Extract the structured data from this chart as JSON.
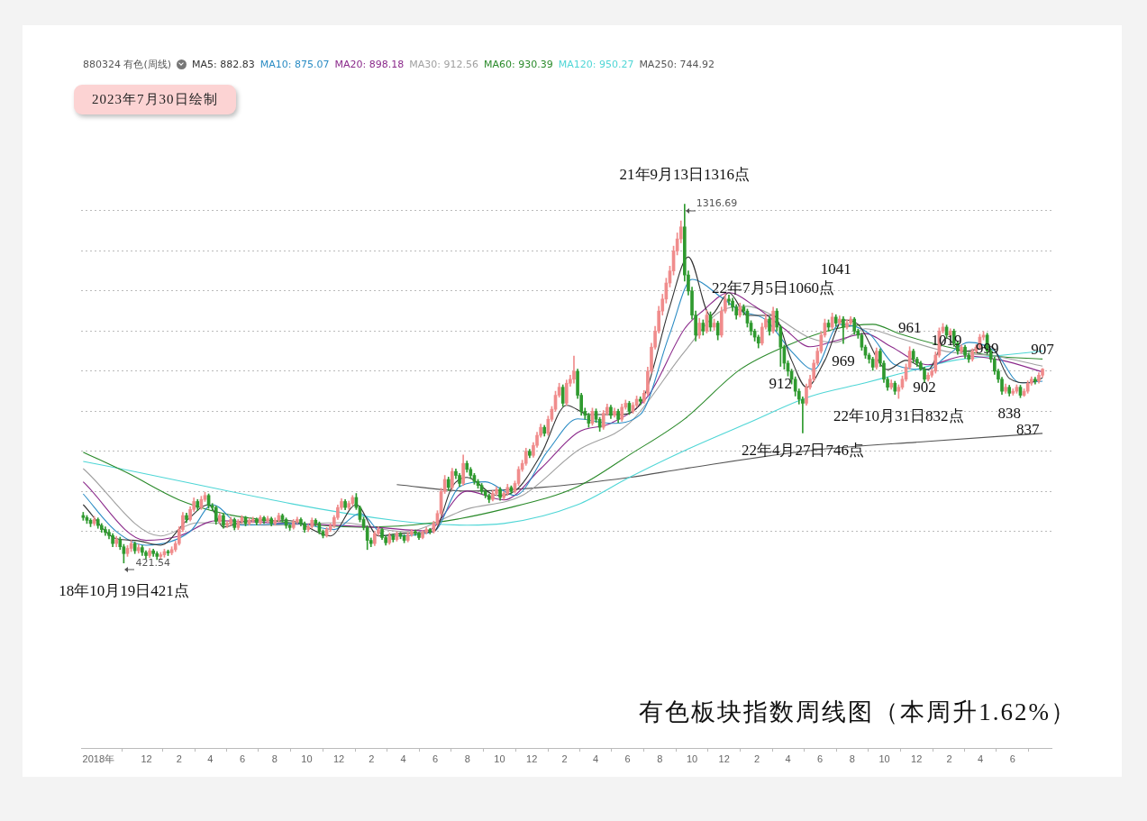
{
  "chart_data": {
    "type": "candlestick",
    "title": "有色板块指数周线图（本周升1.62%）",
    "legend_title": "880324 有色(周线)",
    "legend": "top left",
    "grid": "y",
    "tick_labels": "x",
    "marker": "none",
    "line_style": "solid",
    "xlim": [
      "2018-07-30",
      "2023-08-14"
    ],
    "yticks": [
      {
        "value": 500,
        "label": null
      },
      {
        "value": 600,
        "label": null
      },
      {
        "value": 700,
        "label": null
      },
      {
        "value": 800,
        "label": null
      },
      {
        "value": 900,
        "label": null
      },
      {
        "value": 1000,
        "label": null
      },
      {
        "value": 1100,
        "label": null
      },
      {
        "value": 1200,
        "label": null
      },
      {
        "value": 1300,
        "label": null
      }
    ],
    "xticks": [
      {
        "value": "2018-09-01",
        "label": "2018年"
      },
      {
        "value": "2018-12-01",
        "label": "12"
      },
      {
        "value": "2019-02-01",
        "label": "2"
      },
      {
        "value": "2019-04-01",
        "label": "4"
      },
      {
        "value": "2019-06-01",
        "label": "6"
      },
      {
        "value": "2019-08-01",
        "label": "8"
      },
      {
        "value": "2019-10-01",
        "label": "10"
      },
      {
        "value": "2019-12-01",
        "label": "12"
      },
      {
        "value": "2020-02-01",
        "label": "2"
      },
      {
        "value": "2020-04-01",
        "label": "4"
      },
      {
        "value": "2020-06-01",
        "label": "6"
      },
      {
        "value": "2020-08-01",
        "label": "8"
      },
      {
        "value": "2020-10-01",
        "label": "10"
      },
      {
        "value": "2020-12-01",
        "label": "12"
      },
      {
        "value": "2021-02-01",
        "label": "2"
      },
      {
        "value": "2021-04-01",
        "label": "4"
      },
      {
        "value": "2021-06-01",
        "label": "6"
      },
      {
        "value": "2021-08-01",
        "label": "8"
      },
      {
        "value": "2021-10-01",
        "label": "10"
      },
      {
        "value": "2021-12-01",
        "label": "12"
      },
      {
        "value": "2022-02-01",
        "label": "2"
      },
      {
        "value": "2022-04-01",
        "label": "4"
      },
      {
        "value": "2022-06-01",
        "label": "6"
      },
      {
        "value": "2022-08-01",
        "label": "8"
      },
      {
        "value": "2022-10-01",
        "label": "10"
      },
      {
        "value": "2022-12-01",
        "label": "12"
      },
      {
        "value": "2023-02-01",
        "label": "2"
      },
      {
        "value": "2023-04-01",
        "label": "4"
      },
      {
        "value": "2023-06-01",
        "label": "6"
      }
    ],
    "x": [
      "2018-08-03",
      "2018-08-10",
      "2018-08-17",
      "2018-08-24",
      "2018-08-31",
      "2018-09-07",
      "2018-09-14",
      "2018-09-21",
      "2018-09-28",
      "2018-10-05",
      "2018-10-12",
      "2018-10-19",
      "2018-10-26",
      "2018-11-02",
      "2018-11-09",
      "2018-11-16",
      "2018-11-23",
      "2018-11-30",
      "2018-12-07",
      "2018-12-14",
      "2018-12-21",
      "2018-12-28",
      "2019-01-04",
      "2019-01-11",
      "2019-01-18",
      "2019-01-25",
      "2019-02-01",
      "2019-02-08",
      "2019-02-15",
      "2019-02-22",
      "2019-03-01",
      "2019-03-08",
      "2019-03-15",
      "2019-03-22",
      "2019-03-29",
      "2019-04-05",
      "2019-04-12",
      "2019-04-19",
      "2019-04-26",
      "2019-05-03",
      "2019-05-10",
      "2019-05-17",
      "2019-05-24",
      "2019-05-31",
      "2019-06-07",
      "2019-06-14",
      "2019-06-21",
      "2019-06-28",
      "2019-07-05",
      "2019-07-12",
      "2019-07-19",
      "2019-07-26",
      "2019-08-02",
      "2019-08-09",
      "2019-08-16",
      "2019-08-23",
      "2019-08-30",
      "2019-09-06",
      "2019-09-13",
      "2019-09-20",
      "2019-09-27",
      "2019-10-04",
      "2019-10-11",
      "2019-10-18",
      "2019-10-25",
      "2019-11-01",
      "2019-11-08",
      "2019-11-15",
      "2019-11-22",
      "2019-11-29",
      "2019-12-06",
      "2019-12-13",
      "2019-12-20",
      "2019-12-27",
      "2020-01-03",
      "2020-01-10",
      "2020-01-17",
      "2020-01-24",
      "2020-01-31",
      "2020-02-07",
      "2020-02-14",
      "2020-02-21",
      "2020-02-28",
      "2020-03-06",
      "2020-03-13",
      "2020-03-20",
      "2020-03-27",
      "2020-04-03",
      "2020-04-10",
      "2020-04-17",
      "2020-04-24",
      "2020-05-01",
      "2020-05-08",
      "2020-05-15",
      "2020-05-22",
      "2020-05-29",
      "2020-06-05",
      "2020-06-12",
      "2020-06-19",
      "2020-06-26",
      "2020-07-03",
      "2020-07-10",
      "2020-07-17",
      "2020-07-24",
      "2020-07-31",
      "2020-08-07",
      "2020-08-14",
      "2020-08-21",
      "2020-08-28",
      "2020-09-04",
      "2020-09-11",
      "2020-09-18",
      "2020-09-25",
      "2020-10-02",
      "2020-10-09",
      "2020-10-16",
      "2020-10-23",
      "2020-10-30",
      "2020-11-06",
      "2020-11-13",
      "2020-11-20",
      "2020-11-27",
      "2020-12-04",
      "2020-12-11",
      "2020-12-18",
      "2020-12-25",
      "2021-01-01",
      "2021-01-08",
      "2021-01-15",
      "2021-01-22",
      "2021-01-29",
      "2021-02-05",
      "2021-02-12",
      "2021-02-19",
      "2021-02-26",
      "2021-03-05",
      "2021-03-12",
      "2021-03-19",
      "2021-03-26",
      "2021-04-02",
      "2021-04-09",
      "2021-04-16",
      "2021-04-23",
      "2021-04-30",
      "2021-05-07",
      "2021-05-14",
      "2021-05-21",
      "2021-05-28",
      "2021-06-04",
      "2021-06-11",
      "2021-06-18",
      "2021-06-25",
      "2021-07-02",
      "2021-07-09",
      "2021-07-16",
      "2021-07-23",
      "2021-07-30",
      "2021-08-06",
      "2021-08-13",
      "2021-08-20",
      "2021-08-27",
      "2021-09-03",
      "2021-09-10",
      "2021-09-17",
      "2021-09-24",
      "2021-10-01",
      "2021-10-08",
      "2021-10-15",
      "2021-10-22",
      "2021-10-29",
      "2021-11-05",
      "2021-11-12",
      "2021-11-19",
      "2021-11-26",
      "2021-12-03",
      "2021-12-10",
      "2021-12-17",
      "2021-12-24",
      "2021-12-31",
      "2022-01-07",
      "2022-01-14",
      "2022-01-21",
      "2022-01-28",
      "2022-02-04",
      "2022-02-11",
      "2022-02-18",
      "2022-02-25",
      "2022-03-04",
      "2022-03-11",
      "2022-03-18",
      "2022-03-25",
      "2022-04-01",
      "2022-04-08",
      "2022-04-15",
      "2022-04-22",
      "2022-04-29",
      "2022-05-06",
      "2022-05-13",
      "2022-05-20",
      "2022-05-27",
      "2022-06-03",
      "2022-06-10",
      "2022-06-17",
      "2022-06-24",
      "2022-07-01",
      "2022-07-08",
      "2022-07-15",
      "2022-07-22",
      "2022-07-29",
      "2022-08-05",
      "2022-08-12",
      "2022-08-19",
      "2022-08-26",
      "2022-09-02",
      "2022-09-09",
      "2022-09-16",
      "2022-09-23",
      "2022-09-30",
      "2022-10-07",
      "2022-10-14",
      "2022-10-21",
      "2022-10-28",
      "2022-11-04",
      "2022-11-11",
      "2022-11-18",
      "2022-11-25",
      "2022-12-02",
      "2022-12-09",
      "2022-12-16",
      "2022-12-23",
      "2022-12-30",
      "2023-01-06",
      "2023-01-13",
      "2023-01-20",
      "2023-01-27",
      "2023-02-03",
      "2023-02-10",
      "2023-02-17",
      "2023-02-24",
      "2023-03-03",
      "2023-03-10",
      "2023-03-17",
      "2023-03-24",
      "2023-03-31",
      "2023-04-07",
      "2023-04-14",
      "2023-04-21",
      "2023-04-28",
      "2023-05-05",
      "2023-05-12",
      "2023-05-19",
      "2023-05-26",
      "2023-06-02",
      "2023-06-09",
      "2023-06-16",
      "2023-06-23",
      "2023-06-30",
      "2023-07-07",
      "2023-07-14",
      "2023-07-21",
      "2023-07-28"
    ],
    "ohlc": [
      [
        540,
        548,
        528,
        535
      ],
      [
        535,
        540,
        520,
        528
      ],
      [
        528,
        532,
        512,
        520
      ],
      [
        520,
        538,
        515,
        530
      ],
      [
        530,
        534,
        508,
        515
      ],
      [
        515,
        520,
        498,
        505
      ],
      [
        505,
        512,
        490,
        498
      ],
      [
        498,
        505,
        482,
        490
      ],
      [
        490,
        495,
        462,
        470
      ],
      [
        470,
        488,
        462,
        480
      ],
      [
        480,
        486,
        455,
        462
      ],
      [
        462,
        468,
        421.54,
        445
      ],
      [
        445,
        465,
        438,
        458
      ],
      [
        458,
        478,
        450,
        470
      ],
      [
        470,
        474,
        445,
        452
      ],
      [
        452,
        468,
        446,
        460
      ],
      [
        460,
        465,
        440,
        448
      ],
      [
        448,
        452,
        432,
        440
      ],
      [
        440,
        458,
        435,
        452
      ],
      [
        452,
        456,
        438,
        445
      ],
      [
        445,
        450,
        430,
        438
      ],
      [
        438,
        448,
        430,
        442
      ],
      [
        442,
        456,
        436,
        450
      ],
      [
        450,
        454,
        440,
        447
      ],
      [
        447,
        462,
        442,
        455
      ],
      [
        455,
        476,
        450,
        470
      ],
      [
        470,
        512,
        466,
        505
      ],
      [
        505,
        548,
        500,
        540
      ],
      [
        540,
        546,
        522,
        530
      ],
      [
        530,
        562,
        526,
        555
      ],
      [
        555,
        584,
        550,
        575
      ],
      [
        575,
        580,
        552,
        560
      ],
      [
        560,
        588,
        555,
        580
      ],
      [
        580,
        598,
        575,
        590
      ],
      [
        590,
        594,
        558,
        565
      ],
      [
        565,
        570,
        552,
        560
      ],
      [
        560,
        564,
        518,
        525
      ],
      [
        525,
        546,
        520,
        540
      ],
      [
        540,
        544,
        508,
        515
      ],
      [
        515,
        526,
        510,
        520
      ],
      [
        520,
        536,
        515,
        530
      ],
      [
        530,
        534,
        504,
        510
      ],
      [
        510,
        530,
        505,
        525
      ],
      [
        525,
        540,
        520,
        535
      ],
      [
        535,
        538,
        514,
        520
      ],
      [
        520,
        534,
        516,
        528
      ],
      [
        528,
        536,
        522,
        530
      ],
      [
        530,
        534,
        516,
        522
      ],
      [
        522,
        540,
        518,
        535
      ],
      [
        535,
        538,
        520,
        527
      ],
      [
        527,
        538,
        522,
        532
      ],
      [
        532,
        536,
        514,
        520
      ],
      [
        520,
        534,
        516,
        528
      ],
      [
        528,
        546,
        524,
        540
      ],
      [
        540,
        544,
        524,
        530
      ],
      [
        530,
        534,
        508,
        515
      ],
      [
        515,
        518,
        503,
        510
      ],
      [
        510,
        530,
        506,
        525
      ],
      [
        525,
        536,
        520,
        530
      ],
      [
        530,
        534,
        514,
        520
      ],
      [
        520,
        524,
        498,
        505
      ],
      [
        505,
        518,
        500,
        512
      ],
      [
        512,
        534,
        508,
        528
      ],
      [
        528,
        532,
        514,
        520
      ],
      [
        520,
        524,
        494,
        500
      ],
      [
        500,
        504,
        484,
        490
      ],
      [
        490,
        510,
        486,
        505
      ],
      [
        505,
        520,
        500,
        515
      ],
      [
        515,
        540,
        510,
        535
      ],
      [
        535,
        566,
        530,
        560
      ],
      [
        560,
        582,
        555,
        575
      ],
      [
        575,
        580,
        554,
        560
      ],
      [
        560,
        576,
        555,
        570
      ],
      [
        570,
        590,
        565,
        585
      ],
      [
        585,
        595,
        555,
        560
      ],
      [
        560,
        564,
        524,
        530
      ],
      [
        530,
        536,
        504,
        510
      ],
      [
        510,
        514,
        455,
        478
      ],
      [
        478,
        484,
        462,
        470
      ],
      [
        470,
        500,
        465,
        495
      ],
      [
        495,
        512,
        490,
        505
      ],
      [
        505,
        508,
        480,
        485
      ],
      [
        485,
        490,
        466,
        472
      ],
      [
        472,
        496,
        468,
        490
      ],
      [
        490,
        494,
        474,
        480
      ],
      [
        480,
        500,
        476,
        495
      ],
      [
        495,
        498,
        482,
        488
      ],
      [
        488,
        492,
        472,
        478
      ],
      [
        478,
        498,
        474,
        492
      ],
      [
        492,
        505,
        488,
        500
      ],
      [
        500,
        504,
        490,
        495
      ],
      [
        495,
        498,
        480,
        485
      ],
      [
        485,
        503,
        482,
        498
      ],
      [
        498,
        510,
        494,
        505
      ],
      [
        505,
        508,
        494,
        500
      ],
      [
        500,
        526,
        496,
        520
      ],
      [
        520,
        552,
        516,
        545
      ],
      [
        545,
        608,
        540,
        600
      ],
      [
        600,
        640,
        595,
        630
      ],
      [
        630,
        636,
        602,
        610
      ],
      [
        610,
        658,
        605,
        650
      ],
      [
        650,
        656,
        632,
        640
      ],
      [
        640,
        645,
        612,
        620
      ],
      [
        620,
        691,
        615,
        670
      ],
      [
        670,
        676,
        648,
        655
      ],
      [
        655,
        660,
        632,
        640
      ],
      [
        640,
        645,
        618,
        625
      ],
      [
        625,
        630,
        608,
        615
      ],
      [
        615,
        620,
        594,
        600
      ],
      [
        600,
        605,
        584,
        590
      ],
      [
        590,
        594,
        572,
        580
      ],
      [
        580,
        602,
        576,
        595
      ],
      [
        595,
        612,
        590,
        605
      ],
      [
        605,
        610,
        578,
        585
      ],
      [
        585,
        600,
        580,
        595
      ],
      [
        595,
        618,
        590,
        610
      ],
      [
        610,
        614,
        594,
        600
      ],
      [
        600,
        626,
        596,
        620
      ],
      [
        620,
        662,
        615,
        655
      ],
      [
        655,
        678,
        650,
        670
      ],
      [
        670,
        708,
        665,
        700
      ],
      [
        700,
        705,
        684,
        690
      ],
      [
        690,
        722,
        685,
        715
      ],
      [
        715,
        748,
        710,
        740
      ],
      [
        740,
        768,
        735,
        760
      ],
      [
        760,
        765,
        738,
        745
      ],
      [
        745,
        788,
        740,
        780
      ],
      [
        780,
        812,
        775,
        805
      ],
      [
        805,
        850,
        800,
        840
      ],
      [
        840,
        870,
        835,
        860
      ],
      [
        860,
        866,
        812,
        820
      ],
      [
        820,
        878,
        815,
        870
      ],
      [
        870,
        890,
        862,
        880
      ],
      [
        880,
        938,
        870,
        900
      ],
      [
        900,
        905,
        832,
        840
      ],
      [
        840,
        845,
        790,
        800
      ],
      [
        800,
        808,
        780,
        790
      ],
      [
        790,
        795,
        760,
        770
      ],
      [
        770,
        808,
        765,
        800
      ],
      [
        800,
        806,
        772,
        780
      ],
      [
        780,
        785,
        750,
        760
      ],
      [
        760,
        802,
        755,
        795
      ],
      [
        795,
        818,
        790,
        810
      ],
      [
        810,
        815,
        782,
        790
      ],
      [
        790,
        808,
        785,
        800
      ],
      [
        800,
        805,
        772,
        780
      ],
      [
        780,
        818,
        775,
        810
      ],
      [
        810,
        828,
        805,
        820
      ],
      [
        820,
        825,
        792,
        800
      ],
      [
        800,
        822,
        795,
        815
      ],
      [
        815,
        838,
        810,
        830
      ],
      [
        830,
        836,
        816,
        825
      ],
      [
        825,
        852,
        820,
        845
      ],
      [
        845,
        910,
        840,
        900
      ],
      [
        900,
        970,
        895,
        960
      ],
      [
        960,
        1012,
        955,
        1000
      ],
      [
        1000,
        1062,
        995,
        1050
      ],
      [
        1050,
        1092,
        1040,
        1080
      ],
      [
        1080,
        1132,
        1070,
        1120
      ],
      [
        1120,
        1162,
        1110,
        1150
      ],
      [
        1150,
        1212,
        1140,
        1200
      ],
      [
        1200,
        1245,
        1190,
        1230
      ],
      [
        1230,
        1275,
        1220,
        1260
      ],
      [
        1260,
        1316.69,
        1125,
        1140
      ],
      [
        1140,
        1150,
        1090,
        1100
      ],
      [
        1100,
        1110,
        1030,
        1040
      ],
      [
        1040,
        1050,
        975,
        990
      ],
      [
        990,
        1032,
        982,
        1020
      ],
      [
        1020,
        1028,
        990,
        1000
      ],
      [
        1000,
        1052,
        995,
        1040
      ],
      [
        1040,
        1048,
        1000,
        1010
      ],
      [
        1010,
        1030,
        1002,
        1020
      ],
      [
        1020,
        1025,
        978,
        990
      ],
      [
        990,
        1060,
        985,
        1050
      ],
      [
        1050,
        1092,
        1045,
        1080
      ],
      [
        1080,
        1090,
        1065,
        1075
      ],
      [
        1075,
        1082,
        1050,
        1060
      ],
      [
        1060,
        1066,
        1030,
        1040
      ],
      [
        1040,
        1070,
        1035,
        1060
      ],
      [
        1060,
        1066,
        1040,
        1050
      ],
      [
        1050,
        1055,
        1010,
        1020
      ],
      [
        1020,
        1026,
        990,
        1000
      ],
      [
        1000,
        1005,
        975,
        985
      ],
      [
        985,
        990,
        958,
        970
      ],
      [
        970,
        1020,
        965,
        1010
      ],
      [
        1010,
        1042,
        1005,
        1030
      ],
      [
        1030,
        1036,
        990,
        1000
      ],
      [
        1000,
        1060,
        995,
        1050
      ],
      [
        1050,
        1056,
        1000,
        1010
      ],
      [
        1010,
        1015,
        912,
        960
      ],
      [
        960,
        965,
        905,
        920
      ],
      [
        920,
        926,
        888,
        900
      ],
      [
        900,
        905,
        868,
        880
      ],
      [
        880,
        886,
        838,
        850
      ],
      [
        850,
        856,
        818,
        830
      ],
      [
        830,
        836,
        746,
        820
      ],
      [
        820,
        868,
        815,
        860
      ],
      [
        860,
        890,
        855,
        880
      ],
      [
        880,
        928,
        875,
        920
      ],
      [
        920,
        958,
        915,
        950
      ],
      [
        950,
        998,
        945,
        990
      ],
      [
        990,
        1030,
        985,
        1020
      ],
      [
        1020,
        1028,
        1000,
        1010
      ],
      [
        1010,
        1045,
        1005,
        1035
      ],
      [
        1035,
        1041,
        1012,
        1020
      ],
      [
        1020,
        1038,
        1015,
        1030
      ],
      [
        1030,
        1036,
        969,
        1010
      ],
      [
        1010,
        1028,
        1005,
        1020
      ],
      [
        1020,
        1036,
        1015,
        1030
      ],
      [
        1030,
        1034,
        992,
        1000
      ],
      [
        1000,
        1005,
        982,
        990
      ],
      [
        990,
        995,
        952,
        960
      ],
      [
        960,
        965,
        932,
        940
      ],
      [
        940,
        945,
        920,
        930
      ],
      [
        930,
        935,
        902,
        910
      ],
      [
        910,
        958,
        905,
        950
      ],
      [
        950,
        956,
        912,
        920
      ],
      [
        920,
        926,
        872,
        880
      ],
      [
        880,
        885,
        852,
        860
      ],
      [
        860,
        878,
        855,
        870
      ],
      [
        870,
        875,
        842,
        850
      ],
      [
        850,
        866,
        832,
        860
      ],
      [
        860,
        888,
        855,
        880
      ],
      [
        880,
        918,
        875,
        910
      ],
      [
        910,
        961,
        905,
        950
      ],
      [
        950,
        955,
        922,
        930
      ],
      [
        930,
        935,
        912,
        920
      ],
      [
        920,
        925,
        902,
        905
      ],
      [
        905,
        910,
        872,
        880
      ],
      [
        880,
        896,
        875,
        890
      ],
      [
        890,
        906,
        885,
        900
      ],
      [
        900,
        948,
        895,
        940
      ],
      [
        940,
        1008,
        935,
        1000
      ],
      [
        1000,
        1019,
        995,
        1010
      ],
      [
        1010,
        1015,
        982,
        990
      ],
      [
        990,
        1006,
        985,
        1000
      ],
      [
        1000,
        1005,
        962,
        970
      ],
      [
        970,
        975,
        942,
        950
      ],
      [
        950,
        966,
        945,
        960
      ],
      [
        960,
        965,
        932,
        940
      ],
      [
        940,
        945,
        922,
        930
      ],
      [
        930,
        956,
        925,
        950
      ],
      [
        950,
        966,
        945,
        960
      ],
      [
        960,
        992,
        955,
        985
      ],
      [
        985,
        999,
        978,
        990
      ],
      [
        990,
        995,
        942,
        950
      ],
      [
        950,
        955,
        922,
        930
      ],
      [
        930,
        935,
        892,
        900
      ],
      [
        900,
        905,
        872,
        880
      ],
      [
        880,
        885,
        842,
        850
      ],
      [
        850,
        868,
        845,
        860
      ],
      [
        860,
        865,
        838,
        845
      ],
      [
        845,
        856,
        840,
        850
      ],
      [
        850,
        866,
        845,
        860
      ],
      [
        860,
        865,
        834,
        840
      ],
      [
        840,
        856,
        837,
        850
      ],
      [
        850,
        876,
        845,
        870
      ],
      [
        870,
        886,
        865,
        880
      ],
      [
        880,
        885,
        868,
        875
      ],
      [
        875,
        896,
        870,
        890
      ],
      [
        890,
        907,
        885,
        905
      ]
    ],
    "colors": [
      "#2f9a2f",
      "#2f9a2f",
      "#2f9a2f",
      "#f08c8c",
      "#2f9a2f",
      "#2f9a2f",
      "#2f9a2f",
      "#2f9a2f",
      "#2f9a2f",
      "#f08c8c",
      "#2f9a2f",
      "#2f9a2f",
      "#f08c8c",
      "#f08c8c",
      "#2f9a2f",
      "#f08c8c",
      "#2f9a2f",
      "#2f9a2f",
      "#f08c8c",
      "#2f9a2f",
      "#2f9a2f",
      "#f08c8c",
      "#f08c8c",
      "#2f9a2f",
      "#f08c8c",
      "#f08c8c",
      "#f08c8c",
      "#f08c8c",
      "#2f9a2f",
      "#f08c8c",
      "#f08c8c",
      "#2f9a2f",
      "#f08c8c",
      "#f08c8c",
      "#2f9a2f",
      "#2f9a2f",
      "#2f9a2f",
      "#f08c8c",
      "#2f9a2f",
      "#f08c8c",
      "#f08c8c",
      "#2f9a2f",
      "#f08c8c",
      "#f08c8c",
      "#2f9a2f",
      "#f08c8c",
      "#f08c8c",
      "#2f9a2f",
      "#f08c8c",
      "#2f9a2f",
      "#f08c8c",
      "#2f9a2f",
      "#f08c8c",
      "#f08c8c",
      "#2f9a2f",
      "#2f9a2f",
      "#2f9a2f",
      "#f08c8c",
      "#f08c8c",
      "#2f9a2f",
      "#2f9a2f",
      "#f08c8c",
      "#f08c8c",
      "#2f9a2f",
      "#2f9a2f",
      "#2f9a2f",
      "#f08c8c",
      "#f08c8c",
      "#f08c8c",
      "#f08c8c",
      "#f08c8c",
      "#2f9a2f",
      "#f08c8c",
      "#f08c8c",
      "#2f9a2f",
      "#2f9a2f",
      "#2f9a2f",
      "#2f9a2f",
      "#2f9a2f",
      "#f08c8c",
      "#f08c8c",
      "#2f9a2f",
      "#2f9a2f",
      "#f08c8c",
      "#2f9a2f",
      "#f08c8c",
      "#2f9a2f",
      "#2f9a2f",
      "#f08c8c",
      "#f08c8c",
      "#2f9a2f",
      "#2f9a2f",
      "#f08c8c",
      "#f08c8c",
      "#2f9a2f",
      "#f08c8c",
      "#f08c8c",
      "#f08c8c",
      "#f08c8c",
      "#2f9a2f",
      "#f08c8c",
      "#2f9a2f",
      "#2f9a2f",
      "#f08c8c",
      "#2f9a2f",
      "#2f9a2f",
      "#2f9a2f",
      "#2f9a2f",
      "#2f9a2f",
      "#2f9a2f",
      "#2f9a2f",
      "#f08c8c",
      "#f08c8c",
      "#2f9a2f",
      "#f08c8c",
      "#f08c8c",
      "#2f9a2f",
      "#f08c8c",
      "#f08c8c",
      "#f08c8c",
      "#f08c8c",
      "#2f9a2f",
      "#f08c8c",
      "#f08c8c",
      "#f08c8c",
      "#2f9a2f",
      "#f08c8c",
      "#f08c8c",
      "#f08c8c",
      "#f08c8c",
      "#2f9a2f",
      "#f08c8c",
      "#f08c8c",
      "#f08c8c",
      "#2f9a2f",
      "#2f9a2f",
      "#2f9a2f",
      "#2f9a2f",
      "#f08c8c",
      "#2f9a2f",
      "#2f9a2f",
      "#f08c8c",
      "#f08c8c",
      "#2f9a2f",
      "#f08c8c",
      "#2f9a2f",
      "#f08c8c",
      "#f08c8c",
      "#2f9a2f",
      "#f08c8c",
      "#f08c8c",
      "#2f9a2f",
      "#f08c8c",
      "#f08c8c",
      "#f08c8c",
      "#f08c8c",
      "#f08c8c",
      "#f08c8c",
      "#f08c8c",
      "#f08c8c",
      "#f08c8c",
      "#f08c8c",
      "#f08c8c",
      "#2f9a2f",
      "#2f9a2f",
      "#2f9a2f",
      "#2f9a2f",
      "#f08c8c",
      "#2f9a2f",
      "#f08c8c",
      "#2f9a2f",
      "#f08c8c",
      "#2f9a2f",
      "#f08c8c",
      "#f08c8c",
      "#2f9a2f",
      "#2f9a2f",
      "#2f9a2f",
      "#f08c8c",
      "#2f9a2f",
      "#2f9a2f",
      "#2f9a2f",
      "#2f9a2f",
      "#2f9a2f",
      "#f08c8c",
      "#f08c8c",
      "#2f9a2f",
      "#f08c8c",
      "#2f9a2f",
      "#2f9a2f",
      "#2f9a2f",
      "#2f9a2f",
      "#2f9a2f",
      "#2f9a2f",
      "#2f9a2f",
      "#2f9a2f",
      "#f08c8c",
      "#f08c8c",
      "#f08c8c",
      "#f08c8c",
      "#f08c8c",
      "#f08c8c",
      "#2f9a2f",
      "#f08c8c",
      "#2f9a2f",
      "#f08c8c",
      "#2f9a2f",
      "#f08c8c",
      "#f08c8c",
      "#2f9a2f",
      "#2f9a2f",
      "#2f9a2f",
      "#2f9a2f",
      "#2f9a2f",
      "#2f9a2f",
      "#f08c8c",
      "#2f9a2f",
      "#2f9a2f",
      "#2f9a2f",
      "#f08c8c",
      "#2f9a2f",
      "#f08c8c",
      "#f08c8c",
      "#f08c8c",
      "#f08c8c",
      "#2f9a2f",
      "#2f9a2f",
      "#2f9a2f",
      "#2f9a2f",
      "#f08c8c",
      "#f08c8c",
      "#f08c8c",
      "#f08c8c",
      "#f08c8c",
      "#2f9a2f",
      "#f08c8c",
      "#2f9a2f",
      "#2f9a2f",
      "#f08c8c",
      "#2f9a2f",
      "#2f9a2f",
      "#f08c8c",
      "#f08c8c",
      "#f08c8c",
      "#f08c8c",
      "#2f9a2f",
      "#2f9a2f",
      "#2f9a2f",
      "#2f9a2f",
      "#2f9a2f",
      "#f08c8c",
      "#2f9a2f",
      "#f08c8c",
      "#f08c8c",
      "#2f9a2f",
      "#f08c8c",
      "#f08c8c",
      "#f08c8c",
      "#2f9a2f",
      "#f08c8c",
      "#f08c8c"
    ],
    "series": [
      {
        "type": "line",
        "name": "MA5: 882.83",
        "color": "#333333",
        "x": [
          "2018-08-03",
          "2018-10-05",
          "2018-11-09",
          "2018-12-28",
          "2019-02-15",
          "2019-03-29",
          "2019-04-26",
          "2019-06-14",
          "2019-08-30",
          "2019-11-15",
          "2020-01-03",
          "2020-02-14",
          "2020-04-03",
          "2020-05-29",
          "2020-07-03",
          "2020-07-31",
          "2020-09-25",
          "2020-10-30",
          "2020-12-18",
          "2021-02-05",
          "2021-03-19",
          "2021-05-21",
          "2021-07-02",
          "2021-08-20",
          "2021-09-24",
          "2021-11-05",
          "2021-12-10",
          "2022-01-14",
          "2022-03-04",
          "2022-04-08",
          "2022-05-06",
          "2022-06-10",
          "2022-07-15",
          "2022-08-12",
          "2022-10-07",
          "2022-11-11",
          "2022-12-23",
          "2023-01-27",
          "2023-02-24",
          "2023-04-21",
          "2023-05-26",
          "2023-06-30",
          "2023-07-28"
        ],
        "values": [
          567,
          482,
          478,
          466,
          527,
          567,
          511,
          527,
          527,
          489,
          567,
          489,
          496,
          500,
          612,
          635,
          590,
          601,
          691,
          815,
          792,
          792,
          837,
          1062,
          1185,
          1039,
          1096,
          1039,
          1039,
          927,
          860,
          927,
          1028,
          1017,
          904,
          927,
          904,
          983,
          949,
          961,
          882,
          871,
          882.83
        ]
      },
      {
        "type": "line",
        "name": "MA10: 875.07",
        "color": "#2b8cc4",
        "x": [
          "2018-08-03",
          "2018-10-05",
          "2018-11-30",
          "2019-02-22",
          "2019-04-05",
          "2019-05-31",
          "2019-09-13",
          "2019-11-22",
          "2020-01-10",
          "2020-02-28",
          "2020-05-29",
          "2020-07-17",
          "2020-09-04",
          "2020-10-30",
          "2021-01-01",
          "2021-02-26",
          "2021-04-30",
          "2021-06-25",
          "2021-08-20",
          "2021-10-01",
          "2021-11-26",
          "2021-12-31",
          "2022-02-18",
          "2022-04-08",
          "2022-05-20",
          "2022-07-08",
          "2022-09-02",
          "2022-10-21",
          "2022-12-23",
          "2023-01-27",
          "2023-03-10",
          "2023-04-28",
          "2023-06-16",
          "2023-07-28"
        ],
        "values": [
          594,
          500,
          466,
          500,
          567,
          516,
          520,
          505,
          545,
          489,
          500,
          612,
          624,
          590,
          702,
          781,
          770,
          792,
          994,
          1129,
          1084,
          1051,
          1028,
          949,
          904,
          1017,
          994,
          916,
          904,
          938,
          972,
          950,
          871,
          875.07
        ]
      },
      {
        "type": "line",
        "name": "MA20: 898.18",
        "color": "#8b2a8b",
        "x": [
          "2018-08-03",
          "2018-11-30",
          "2019-02-01",
          "2019-04-12",
          "2019-07-26",
          "2019-12-06",
          "2020-02-14",
          "2020-05-15",
          "2020-07-31",
          "2020-10-09",
          "2020-12-18",
          "2021-02-26",
          "2021-04-30",
          "2021-07-09",
          "2021-09-17",
          "2021-10-22",
          "2021-12-10",
          "2022-01-28",
          "2022-03-25",
          "2022-05-13",
          "2022-07-01",
          "2022-08-26",
          "2022-10-14",
          "2022-12-23",
          "2023-03-03",
          "2023-05-12",
          "2023-07-28"
        ],
        "values": [
          624,
          478,
          489,
          527,
          522,
          515,
          510,
          502,
          601,
          579,
          657,
          747,
          770,
          837,
          1006,
          1051,
          1096,
          1062,
          1006,
          961,
          976,
          994,
          961,
          916,
          938,
          927,
          898.18
        ]
      },
      {
        "type": "line",
        "name": "MA30: 912.56",
        "color": "#a0a0a0",
        "x": [
          "2018-08-03",
          "2018-12-28",
          "2019-03-08",
          "2019-07-26",
          "2019-12-06",
          "2020-04-03",
          "2020-07-31",
          "2020-11-13",
          "2021-02-26",
          "2021-06-04",
          "2021-09-17",
          "2021-11-26",
          "2022-01-14",
          "2022-03-04",
          "2022-05-13",
          "2022-07-01",
          "2022-08-26",
          "2022-10-28",
          "2023-01-27",
          "2023-04-28",
          "2023-07-28"
        ],
        "values": [
          657,
          489,
          522,
          516,
          522,
          500,
          556,
          590,
          702,
          770,
          949,
          1051,
          1062,
          1039,
          983,
          972,
          1006,
          983,
          949,
          938,
          912.56
        ]
      },
      {
        "type": "line",
        "name": "MA60: 930.39",
        "color": "#2a8a2a",
        "x": [
          "2018-08-03",
          "2018-10-26",
          "2019-02-01",
          "2019-04-26",
          "2019-07-26",
          "2020-01-10",
          "2020-05-29",
          "2020-10-09",
          "2021-02-26",
          "2021-06-04",
          "2021-09-17",
          "2021-12-31",
          "2022-03-25",
          "2022-07-01",
          "2022-09-09",
          "2022-10-28",
          "2023-01-27",
          "2023-04-28",
          "2023-07-28"
        ],
        "values": [
          698,
          646,
          579,
          545,
          527,
          511,
          522,
          556,
          612,
          691,
          781,
          904,
          961,
          1006,
          1017,
          994,
          961,
          938,
          930.39
        ]
      },
      {
        "type": "line",
        "name": "MA120: 950.27",
        "color": "#4fd6d6",
        "x": [
          "2018-08-03",
          "2020-03-20",
          "2020-07-31",
          "2020-10-09",
          "2021-02-26",
          "2021-06-04",
          "2021-09-17",
          "2022-01-14",
          "2022-05-13",
          "2022-08-26",
          "2022-10-28",
          "2023-02-10",
          "2023-04-28",
          "2023-07-28"
        ],
        "values": [
          675,
          527,
          516,
          520,
          567,
          635,
          702,
          770,
          837,
          871,
          893,
          927,
          938,
          950.27
        ]
      },
      {
        "type": "line",
        "name": "MA250: 744.92",
        "color": "#555555",
        "x": [
          "2020-03-20",
          "2020-07-31",
          "2020-12-18",
          "2021-06-04",
          "2021-09-17",
          "2022-05-13",
          "2022-12-23",
          "2023-07-28"
        ],
        "values": [
          617,
          601,
          610,
          635,
          657,
          702,
          725,
          744.92
        ]
      }
    ],
    "annotations": [
      "2023年7月30日绘制",
      {
        "text": "1316.69",
        "x": "2021-09-17",
        "y": 1316.69
      },
      {
        "text": "21年9月13日1316点",
        "x": "2021-09-17",
        "y": 1316.69
      },
      {
        "text": "22年7月5日1060点",
        "x": "2022-03-04",
        "y": 1060
      },
      {
        "text": "1041",
        "x": "2022-07-01",
        "y": 1041
      },
      {
        "text": "969",
        "x": "2022-07-15",
        "y": 969
      },
      {
        "text": "912",
        "x": "2022-03-18",
        "y": 912
      },
      {
        "text": "961",
        "x": "2022-11-18",
        "y": 961
      },
      {
        "text": "902",
        "x": "2022-12-16",
        "y": 902
      },
      {
        "text": "1019",
        "x": "2023-01-27",
        "y": 1019
      },
      {
        "text": "999",
        "x": "2023-04-14",
        "y": 999
      },
      {
        "text": "907",
        "x": "2023-07-28",
        "y": 907
      },
      {
        "text": "838",
        "x": "2023-05-26",
        "y": 838
      },
      {
        "text": "837",
        "x": "2023-06-30",
        "y": 837
      },
      {
        "text": "22年10月31日832点",
        "x": "2022-10-28",
        "y": 832
      },
      {
        "text": "22年4月27日746点",
        "x": "2022-04-29",
        "y": 746
      },
      {
        "text": "421.54",
        "x": "2018-10-19",
        "y": 421.54
      },
      {
        "text": "18年10月19日421点",
        "x": "2018-10-19",
        "y": 421.54
      }
    ]
  }
}
